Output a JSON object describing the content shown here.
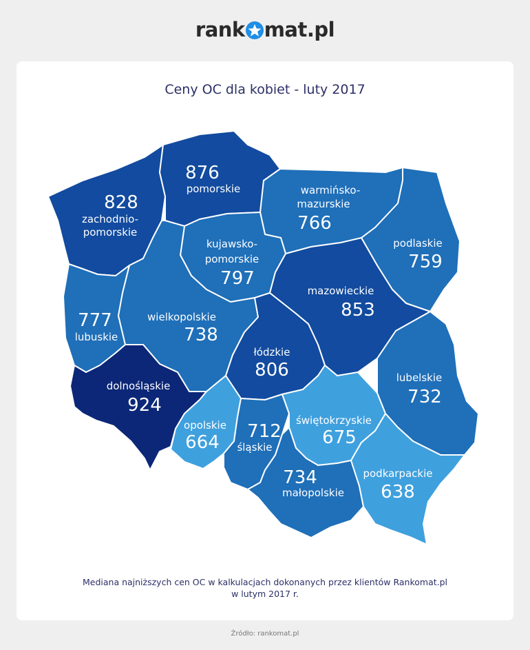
{
  "logo": {
    "pre": "rank",
    "post": "mat.pl",
    "brand_color": "#1f8ee6"
  },
  "title": "Ceny OC dla kobiet - luty 2017",
  "caption_line1": "Mediana najniższych cen OC w kalkulacjach dokonanych przez klientów Rankomat.pl",
  "caption_line2": "w lutym 2017 r.",
  "source": "Źródło: rankomat.pl",
  "colors": {
    "darkest": "#0c2777",
    "dark": "#124b9f",
    "medium": "#1f6fb9",
    "light": "#3fa0de"
  },
  "regions": {
    "zachodniopomorskie": {
      "name1": "zachodnio-",
      "name2": "pomorskie",
      "value": "828",
      "shade": "dark"
    },
    "pomorskie": {
      "name": "pomorskie",
      "value": "876",
      "shade": "dark"
    },
    "warminsko": {
      "name1": "warmińsko-",
      "name2": "mazurskie",
      "value": "766",
      "shade": "medium"
    },
    "podlaskie": {
      "name": "podlaskie",
      "value": "759",
      "shade": "medium"
    },
    "kujawsko": {
      "name1": "kujawsko-",
      "name2": "pomorskie",
      "value": "797",
      "shade": "medium"
    },
    "mazowieckie": {
      "name": "mazowieckie",
      "value": "853",
      "shade": "dark"
    },
    "lubuskie": {
      "name": "lubuskie",
      "value": "777",
      "shade": "medium"
    },
    "wielkopolskie": {
      "name": "wielkopolskie",
      "value": "738",
      "shade": "medium"
    },
    "lodzkie": {
      "name": "łódzkie",
      "value": "806",
      "shade": "dark"
    },
    "lubelskie": {
      "name": "lubelskie",
      "value": "732",
      "shade": "medium"
    },
    "dolnoslaskie": {
      "name": "dolnośląskie",
      "value": "924",
      "shade": "darkest"
    },
    "opolskie": {
      "name": "opolskie",
      "value": "664",
      "shade": "light"
    },
    "slaskie": {
      "name": "śląskie",
      "value": "712",
      "shade": "medium"
    },
    "swietokrzyskie": {
      "name": "świętokrzyskie",
      "value": "675",
      "shade": "light"
    },
    "malopolskie": {
      "name": "małopolskie",
      "value": "734",
      "shade": "medium"
    },
    "podkarpackie": {
      "name": "podkarpackie",
      "value": "638",
      "shade": "light"
    }
  }
}
